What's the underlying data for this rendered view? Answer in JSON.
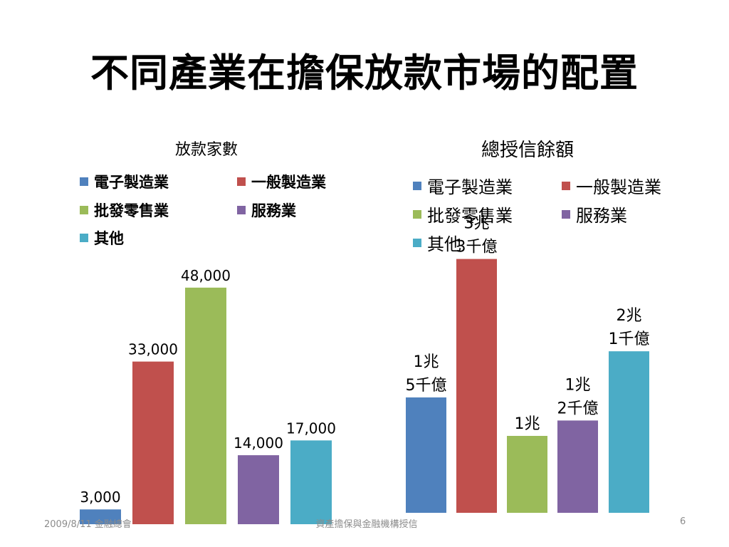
{
  "slide": {
    "title": "不同產業在擔保放款市場的配置",
    "footer_date": "2009/8/11 金融總會",
    "footer_center": "資產擔保與金融機構授信",
    "page_number": "6"
  },
  "colors": {
    "電子製造業": "#4F81BD",
    "一般製造業": "#C0504D",
    "批發零售業": "#9BBB59",
    "服務業": "#8064A2",
    "其他": "#4BACC6"
  },
  "chart_data": [
    {
      "type": "bar",
      "title": "放款家數",
      "categories": [
        "電子製造業",
        "一般製造業",
        "批發零售業",
        "服務業",
        "其他"
      ],
      "values": [
        3000,
        33000,
        48000,
        14000,
        17000
      ],
      "data_labels": [
        "3,000",
        "33,000",
        "48,000",
        "14,000",
        "17,000"
      ],
      "ylim": [
        0,
        50000
      ],
      "legend": "top",
      "grid": false
    },
    {
      "type": "bar",
      "title": "總授信餘額",
      "unit": "億",
      "categories": [
        "電子製造業",
        "一般製造業",
        "批發零售業",
        "服務業",
        "其他"
      ],
      "values": [
        15000,
        33000,
        10000,
        12000,
        21000
      ],
      "data_labels": [
        [
          "1兆",
          "5千億"
        ],
        [
          "3兆",
          "3千億"
        ],
        [
          "1兆"
        ],
        [
          "1兆",
          "2千億"
        ],
        [
          "2兆",
          "1千億"
        ]
      ],
      "ylim": [
        0,
        35000
      ],
      "legend": "top",
      "grid": false
    }
  ]
}
